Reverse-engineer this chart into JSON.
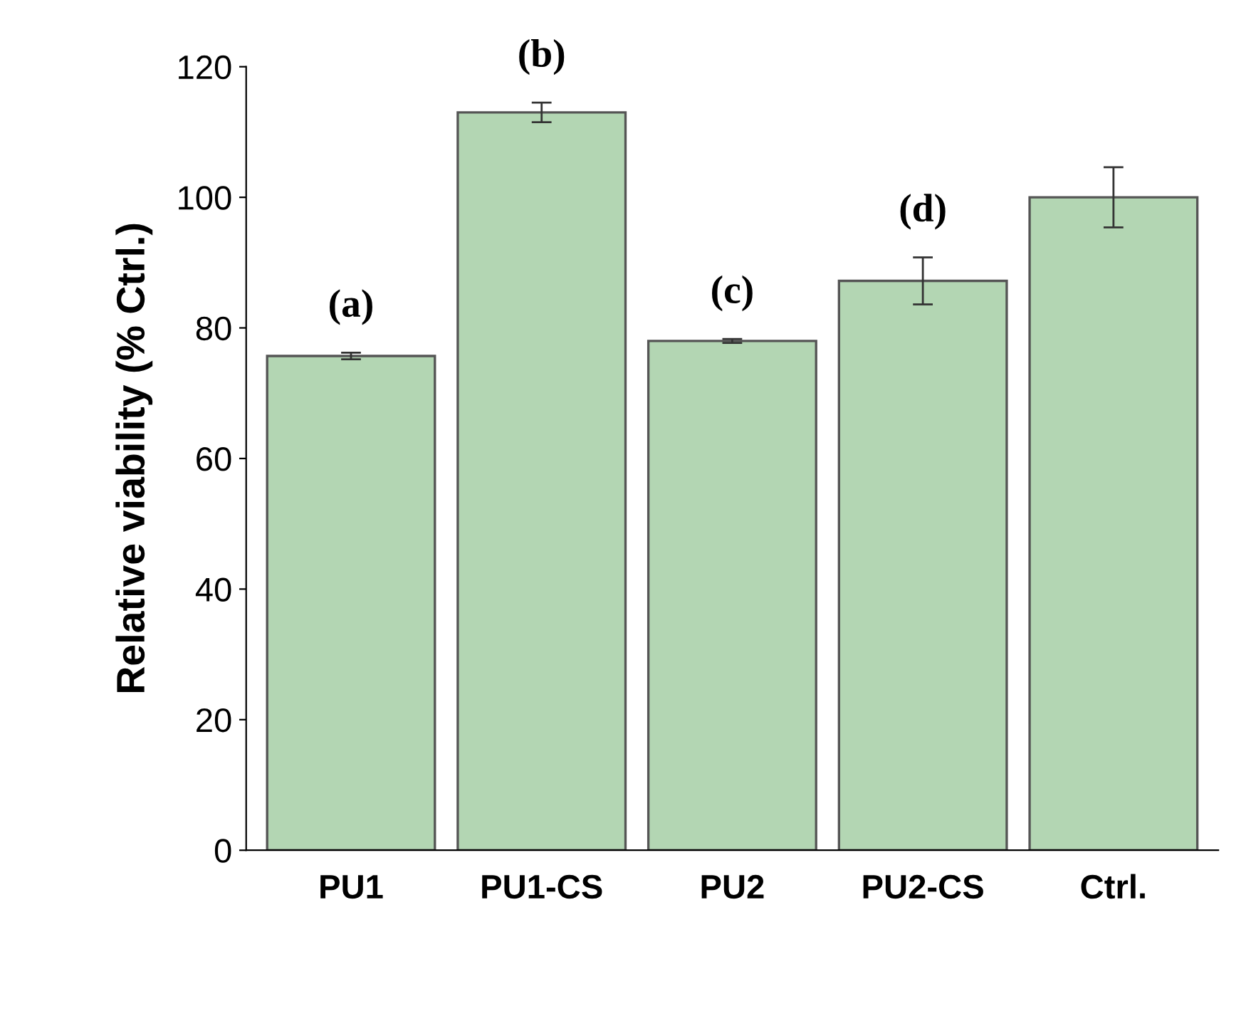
{
  "chart_data": {
    "type": "bar",
    "ylabel": "Relative viability (% Ctrl.)",
    "categories": [
      "PU1",
      "PU1-CS",
      "PU2",
      "PU2-CS",
      "Ctrl."
    ],
    "values": [
      75.7,
      113,
      78,
      87.2,
      100
    ],
    "errors": [
      0.5,
      1.5,
      0.3,
      3.6,
      4.6
    ],
    "color": "#b3d6b3",
    "ylim": [
      0,
      120
    ],
    "yticks": [
      0,
      20,
      40,
      60,
      80,
      100,
      120
    ],
    "grid": false,
    "legend": false,
    "annotations": [
      "(a)",
      "(b)",
      "(c)",
      "(d)"
    ]
  }
}
